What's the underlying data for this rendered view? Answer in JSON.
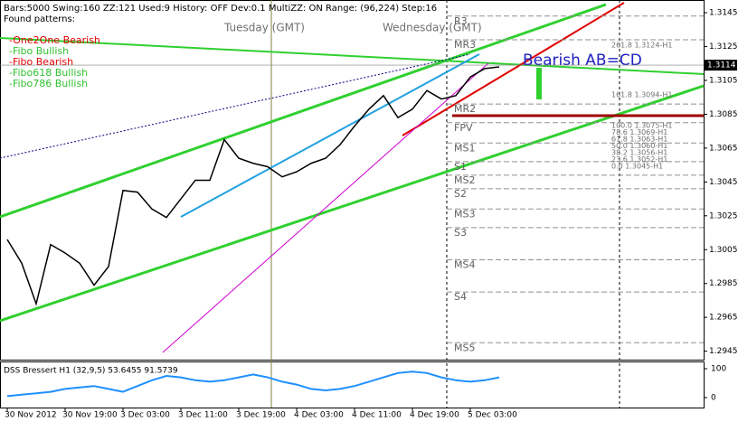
{
  "chart_data": {
    "type": "line",
    "header": "Bars:5000  Swing:160  ZZ:121  Used:9  History: OFF Dev:0.1  MultiZZ: ON  Range: (96,224)  Step:16",
    "patterns_title": "Found patterns:",
    "patterns": [
      {
        "name": "-One2One Bearish",
        "color": "#e00000"
      },
      {
        "name": "-Fibo Bullish",
        "color": "#30c030"
      },
      {
        "name": "-Fibo Bearish",
        "color": "#e00000"
      },
      {
        "name": "-Fibo618 Bullish",
        "color": "#30c030"
      },
      {
        "name": "-Fibo786 Bullish",
        "color": "#30c030"
      }
    ],
    "day_labels": [
      "Tuesday  (GMT)",
      "Wednesday  (GMT)"
    ],
    "annotation": "Bearish AB=CD",
    "categories": [
      "30 Nov 2012",
      null,
      null,
      null,
      "30 Nov 19:00",
      null,
      null,
      null,
      "3 Dec 03:00",
      null,
      null,
      null,
      "3 Dec 11:00",
      null,
      null,
      null,
      "3 Dec 19:00",
      null,
      null,
      null,
      "4 Dec 03:00",
      null,
      null,
      null,
      "4 Dec 11:00",
      null,
      null,
      null,
      "4 Dec 19:00",
      null,
      null,
      null,
      "5 Dec 03:00",
      null,
      null
    ],
    "series": [
      {
        "name": "Close",
        "color": "#000000",
        "values": [
          1.3011,
          1.2997,
          1.2973,
          1.3008,
          1.3003,
          1.2997,
          1.2984,
          1.2995,
          1.304,
          1.3039,
          1.3029,
          1.3024,
          1.3035,
          1.3046,
          1.3046,
          1.307,
          1.3059,
          1.3056,
          1.3054,
          1.3048,
          1.3051,
          1.3056,
          1.3059,
          1.3067,
          1.3078,
          1.3088,
          1.3096,
          1.3083,
          1.3088,
          1.3099,
          1.3094,
          1.3096,
          1.3107,
          1.3112,
          1.3113
        ]
      }
    ],
    "current_price": 1.3114,
    "levels": [
      {
        "label": "R3",
        "value": 1.3143
      },
      {
        "label": "MR3",
        "value": 1.3129
      },
      {
        "label": "MR2",
        "value": 1.3091
      },
      {
        "label": "FPV",
        "value": 1.308
      },
      {
        "label": "MS1",
        "value": 1.3068
      },
      {
        "label": "S1",
        "value": 1.3057
      },
      {
        "label": "MS2",
        "value": 1.3049
      },
      {
        "label": "S2",
        "value": 1.3041
      },
      {
        "label": "MS3",
        "value": 1.3029
      },
      {
        "label": "S3",
        "value": 1.3018
      },
      {
        "label": "MS4",
        "value": 1.2999
      },
      {
        "label": "S4",
        "value": 1.298
      },
      {
        "label": "MS5",
        "value": 1.295
      }
    ],
    "fib_labels": [
      "261.8 1.3124-H1",
      "161.8 1.3094-H1",
      "100.0 1.3075-H1",
      "78.6 1.3069-H1",
      "61.8 1.3063-H1",
      "50.0 1.3060-H1",
      "38.2 1.3056-H1",
      "23.6 1.3052-H1",
      "0.0 1.3045-H1"
    ],
    "ylim": [
      1.294,
      1.31525
    ],
    "yticks": [
      1.3145,
      1.3125,
      1.3105,
      1.3085,
      1.3065,
      1.3045,
      1.3025,
      1.3005,
      1.2985,
      1.2965,
      1.2945
    ],
    "indicator": {
      "title": "DSS Bressert H1 (32,9,5) 53.6455 91.5739",
      "color": "#1e90ff",
      "values": [
        5,
        10,
        15,
        20,
        30,
        35,
        40,
        30,
        20,
        40,
        60,
        75,
        70,
        60,
        55,
        60,
        70,
        80,
        70,
        55,
        45,
        30,
        25,
        30,
        40,
        55,
        70,
        85,
        90,
        85,
        70,
        60,
        55,
        60,
        70
      ],
      "ylim": [
        0,
        100
      ],
      "yticks": [
        100,
        0
      ]
    }
  }
}
